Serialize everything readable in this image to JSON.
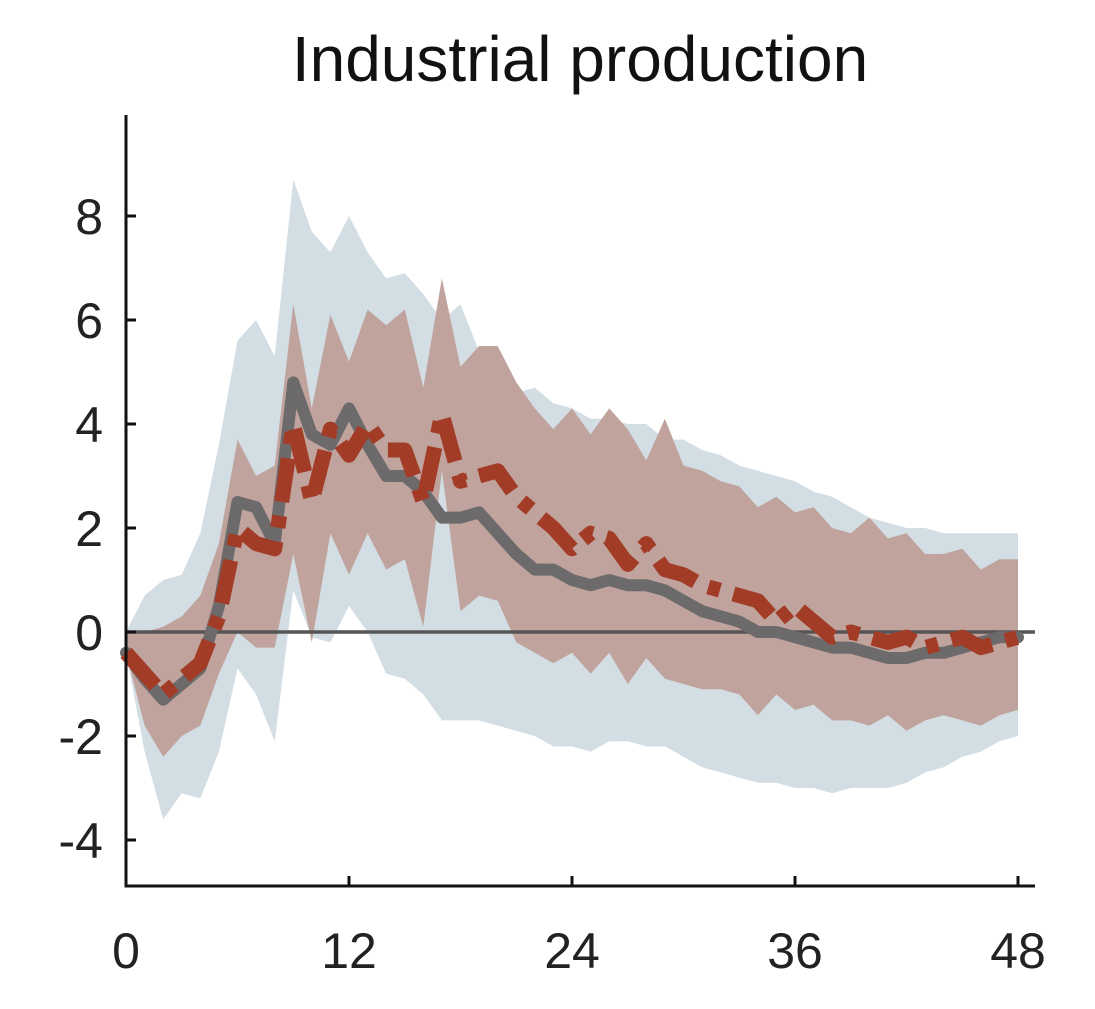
{
  "chart_data": {
    "type": "line",
    "title": "Industrial production",
    "xlabel": "",
    "ylabel": "",
    "xlim": [
      0,
      48
    ],
    "ylim": [
      -4.9,
      9.8
    ],
    "x_ticks": [
      0,
      12,
      24,
      36,
      48
    ],
    "y_ticks": [
      -4,
      -2,
      0,
      2,
      4,
      6,
      8
    ],
    "x_tick_labels": [
      "0",
      "12",
      "24",
      "36",
      "48"
    ],
    "y_tick_labels": [
      "-4",
      "-2",
      "0",
      "2",
      "4",
      "6",
      "8"
    ],
    "grid": false,
    "legend": "none",
    "zero_line": true,
    "colors": {
      "outer_band": "#d3dde4",
      "inner_band": "#bfa39c",
      "solid_line": "#6d6a6c",
      "dashed_line": "#a23c27",
      "zero_line": "#555555",
      "axis": "#111111"
    },
    "x": [
      0,
      1,
      2,
      3,
      4,
      5,
      6,
      7,
      8,
      9,
      10,
      11,
      12,
      13,
      14,
      15,
      16,
      17,
      18,
      19,
      20,
      21,
      22,
      23,
      24,
      25,
      26,
      27,
      28,
      29,
      30,
      31,
      32,
      33,
      34,
      35,
      36,
      37,
      38,
      39,
      40,
      41,
      42,
      43,
      44,
      45,
      46,
      47,
      48
    ],
    "bands": [
      {
        "role": "outer",
        "upper": [
          0.0,
          0.7,
          1.0,
          1.1,
          1.9,
          3.6,
          5.6,
          6.0,
          5.3,
          8.7,
          7.7,
          7.3,
          8.0,
          7.3,
          6.8,
          6.9,
          6.5,
          6.0,
          6.3,
          5.4,
          4.9,
          4.6,
          4.7,
          4.4,
          4.3,
          4.1,
          4.1,
          4.0,
          4.0,
          3.7,
          3.7,
          3.5,
          3.4,
          3.2,
          3.1,
          3.0,
          2.9,
          2.7,
          2.6,
          2.4,
          2.2,
          2.1,
          2.0,
          2.0,
          1.9,
          1.9,
          1.9,
          1.9,
          1.9
        ],
        "lower": [
          -0.4,
          -2.3,
          -3.6,
          -3.1,
          -3.2,
          -2.3,
          -0.7,
          -1.2,
          -2.1,
          0.8,
          -0.1,
          -0.2,
          0.5,
          0.0,
          -0.8,
          -0.9,
          -1.2,
          -1.7,
          -1.7,
          -1.7,
          -1.8,
          -1.9,
          -2.0,
          -2.2,
          -2.2,
          -2.3,
          -2.1,
          -2.1,
          -2.2,
          -2.2,
          -2.4,
          -2.6,
          -2.7,
          -2.8,
          -2.9,
          -2.9,
          -3.0,
          -3.0,
          -3.1,
          -3.0,
          -3.0,
          -3.0,
          -2.9,
          -2.7,
          -2.6,
          -2.4,
          -2.3,
          -2.1,
          -2.0
        ]
      },
      {
        "role": "inner",
        "upper": [
          0.0,
          0.0,
          0.1,
          0.3,
          0.7,
          1.7,
          3.7,
          3.0,
          3.2,
          6.3,
          4.3,
          6.1,
          5.2,
          6.2,
          5.9,
          6.2,
          4.7,
          6.8,
          5.1,
          5.5,
          5.5,
          4.8,
          4.3,
          3.9,
          4.3,
          3.8,
          4.3,
          3.9,
          3.3,
          4.1,
          3.2,
          3.1,
          2.9,
          2.8,
          2.4,
          2.6,
          2.3,
          2.4,
          2.0,
          1.9,
          2.2,
          1.8,
          1.9,
          1.5,
          1.5,
          1.6,
          1.2,
          1.4,
          1.4
        ],
        "lower": [
          -0.4,
          -1.8,
          -2.4,
          -2.0,
          -1.8,
          -0.8,
          0.0,
          -0.3,
          -0.3,
          1.5,
          -0.2,
          1.9,
          1.1,
          1.9,
          1.2,
          1.4,
          0.1,
          3.1,
          0.4,
          0.7,
          0.6,
          -0.2,
          -0.4,
          -0.6,
          -0.4,
          -0.8,
          -0.4,
          -1.0,
          -0.5,
          -0.9,
          -1.0,
          -1.1,
          -1.1,
          -1.2,
          -1.6,
          -1.2,
          -1.5,
          -1.4,
          -1.7,
          -1.7,
          -1.8,
          -1.6,
          -1.9,
          -1.7,
          -1.6,
          -1.7,
          -1.8,
          -1.6,
          -1.5
        ]
      }
    ],
    "series": [
      {
        "style": "solid",
        "values": [
          -0.4,
          -0.9,
          -1.3,
          -1.0,
          -0.7,
          0.5,
          2.5,
          2.4,
          1.7,
          4.8,
          3.8,
          3.6,
          4.3,
          3.6,
          3.0,
          3.0,
          2.7,
          2.2,
          2.2,
          2.3,
          1.9,
          1.5,
          1.2,
          1.2,
          1.0,
          0.9,
          1.0,
          0.9,
          0.9,
          0.8,
          0.6,
          0.4,
          0.3,
          0.2,
          0.0,
          0.0,
          -0.1,
          -0.2,
          -0.3,
          -0.3,
          -0.4,
          -0.5,
          -0.5,
          -0.4,
          -0.4,
          -0.3,
          -0.2,
          -0.1,
          -0.1
        ]
      },
      {
        "style": "dashed",
        "values": [
          -0.4,
          -0.8,
          -1.2,
          -0.9,
          -0.6,
          0.3,
          2.0,
          1.7,
          1.6,
          4.0,
          2.5,
          3.9,
          3.4,
          4.0,
          3.5,
          3.5,
          2.5,
          4.2,
          2.9,
          3.0,
          3.1,
          2.6,
          2.3,
          2.0,
          1.6,
          1.9,
          1.8,
          1.3,
          1.7,
          1.2,
          1.1,
          0.9,
          0.8,
          0.7,
          0.6,
          0.2,
          0.5,
          0.2,
          -0.1,
          0.0,
          -0.1,
          -0.2,
          -0.1,
          -0.3,
          -0.2,
          -0.1,
          -0.3,
          -0.2,
          -0.1
        ]
      }
    ]
  }
}
